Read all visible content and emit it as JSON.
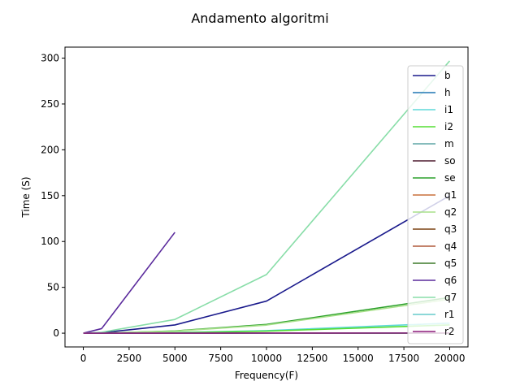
{
  "chart_data": {
    "type": "line",
    "title": "Andamento algoritmi",
    "xlabel": "Frequency(F)",
    "ylabel": "Time (S)",
    "xlim": [
      -1000,
      21000
    ],
    "ylim": [
      -15,
      312
    ],
    "xticks": [
      0,
      2500,
      5000,
      7500,
      10000,
      12500,
      15000,
      17500,
      20000
    ],
    "yticks": [
      0,
      50,
      100,
      150,
      200,
      250,
      300
    ],
    "grid": false,
    "legend_position": "top-right",
    "series": [
      {
        "name": "b",
        "color": "#1a1a8c",
        "x": [
          0,
          1000,
          5000,
          10000,
          20000
        ],
        "y": [
          0,
          0.5,
          9,
          35,
          150
        ]
      },
      {
        "name": "h",
        "color": "#1f77b4",
        "x": [
          0,
          1000,
          5000,
          10000,
          20000
        ],
        "y": [
          0,
          0,
          0,
          0.1,
          0.2
        ]
      },
      {
        "name": "i1",
        "color": "#5fd8d8",
        "x": [
          0,
          1000,
          5000,
          10000,
          20000
        ],
        "y": [
          0,
          0.05,
          0.8,
          2.8,
          11
        ]
      },
      {
        "name": "i2",
        "color": "#55dd33",
        "x": [
          0,
          1000,
          5000,
          10000,
          20000
        ],
        "y": [
          0,
          0.05,
          0.6,
          2.2,
          9
        ]
      },
      {
        "name": "m",
        "color": "#5fa5a5",
        "x": [
          0,
          1000,
          5000,
          10000,
          20000
        ],
        "y": [
          0,
          0,
          0.05,
          0.1,
          0.2
        ]
      },
      {
        "name": "so",
        "color": "#4d1a2e",
        "x": [
          0,
          1000,
          5000,
          10000,
          20000
        ],
        "y": [
          0,
          0,
          0,
          0.1,
          0.2
        ]
      },
      {
        "name": "se",
        "color": "#2ca02c",
        "x": [
          0,
          1000,
          5000,
          10000,
          20000
        ],
        "y": [
          0,
          0.1,
          2.5,
          9.5,
          39
        ]
      },
      {
        "name": "q1",
        "color": "#c8703c",
        "x": [
          0,
          1000,
          5000,
          10000,
          20000
        ],
        "y": [
          0,
          0,
          0,
          0.05,
          0.1
        ]
      },
      {
        "name": "q2",
        "color": "#a8e08a",
        "x": [
          0,
          1000,
          5000,
          10000,
          20000
        ],
        "y": [
          0,
          0.1,
          2.2,
          8.8,
          37
        ]
      },
      {
        "name": "q3",
        "color": "#7a4010",
        "x": [
          0,
          1000,
          5000,
          10000,
          20000
        ],
        "y": [
          0,
          0,
          0,
          0.05,
          0.1
        ]
      },
      {
        "name": "q4",
        "color": "#b05a3c",
        "x": [
          0,
          1000,
          5000,
          10000,
          20000
        ],
        "y": [
          0,
          0,
          0,
          0.05,
          0.1
        ]
      },
      {
        "name": "q5",
        "color": "#3d7a2a",
        "x": [
          0,
          1000,
          5000,
          10000,
          20000
        ],
        "y": [
          0,
          0,
          0,
          0.05,
          0.1
        ]
      },
      {
        "name": "q6",
        "color": "#5a2a9c",
        "x": [
          0,
          1000,
          5000
        ],
        "y": [
          0,
          5,
          110
        ]
      },
      {
        "name": "q7",
        "color": "#88dda8",
        "x": [
          0,
          1000,
          5000,
          10000,
          20000
        ],
        "y": [
          0,
          1,
          15,
          64,
          297
        ]
      },
      {
        "name": "r1",
        "color": "#66cccc",
        "x": [
          0,
          1000,
          5000,
          10000,
          20000
        ],
        "y": [
          0,
          0,
          0,
          0.05,
          0.1
        ]
      },
      {
        "name": "r2",
        "color": "#8c1a7a",
        "x": [
          0,
          1000,
          5000,
          10000,
          20000
        ],
        "y": [
          0,
          0,
          0,
          0.1,
          0.2
        ]
      }
    ]
  }
}
